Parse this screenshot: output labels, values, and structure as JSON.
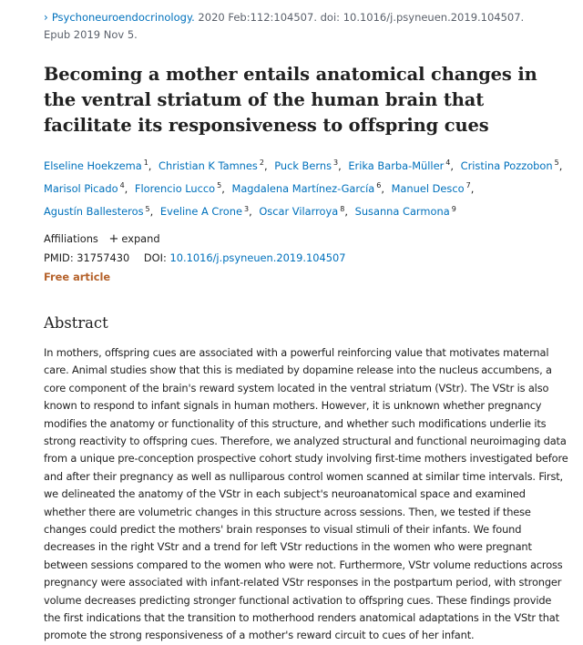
{
  "citation": {
    "chevron": "›",
    "journal": "Psychoneuroendocrinology.",
    "details": " 2020 Feb:112:104507. doi: 10.1016/j.psyneuen.2019.104507.",
    "epub": "Epub 2019 Nov 5."
  },
  "title": "Becoming a mother entails anatomical changes in the ventral striatum of the human brain that facilitate its responsiveness to offspring cues",
  "authors": [
    {
      "name": "Elseline Hoekzema",
      "aff": "1"
    },
    {
      "name": "Christian K Tamnes",
      "aff": "2"
    },
    {
      "name": "Puck Berns",
      "aff": "3"
    },
    {
      "name": "Erika Barba-Müller",
      "aff": "4"
    },
    {
      "name": "Cristina Pozzobon",
      "aff": "5"
    },
    {
      "name": "Marisol Picado",
      "aff": "4"
    },
    {
      "name": "Florencio Lucco",
      "aff": "5"
    },
    {
      "name": "Magdalena Martínez-García",
      "aff": "6"
    },
    {
      "name": "Manuel Desco",
      "aff": "7"
    },
    {
      "name": "Agustín Ballesteros",
      "aff": "5"
    },
    {
      "name": "Eveline A Crone",
      "aff": "3"
    },
    {
      "name": "Oscar Vilarroya",
      "aff": "8"
    },
    {
      "name": "Susanna Carmona",
      "aff": "9"
    }
  ],
  "affiliations": {
    "label": "Affiliations",
    "expand_icon": "+",
    "expand_label": "expand"
  },
  "ids": {
    "pmid_label": "PMID:",
    "pmid": "31757430",
    "doi_label": "DOI:",
    "doi": "10.1016/j.psyneuen.2019.104507"
  },
  "free_article": "Free article",
  "abstract": {
    "heading": "Abstract",
    "text": "In mothers, offspring cues are associated with a powerful reinforcing value that motivates maternal care. Animal studies show that this is mediated by dopamine release into the nucleus accumbens, a core component of the brain's reward system located in the ventral striatum (VStr). The VStr is also known to respond to infant signals in human mothers. However, it is unknown whether pregnancy modifies the anatomy or functionality of this structure, and whether such modifications underlie its strong reactivity to offspring cues. Therefore, we analyzed structural and functional neuroimaging data from a unique pre-conception prospective cohort study involving first-time mothers investigated before and after their pregnancy as well as nulliparous control women scanned at similar time intervals. First, we delineated the anatomy of the VStr in each subject's neuroanatomical space and examined whether there are volumetric changes in this structure across sessions. Then, we tested if these changes could predict the mothers' brain responses to visual stimuli of their infants. We found decreases in the right VStr and a trend for left VStr reductions in the women who were pregnant between sessions compared to the women who were not. Furthermore, VStr volume reductions across pregnancy were associated with infant-related VStr responses in the postpartum period, with stronger volume decreases predicting stronger functional activation to offspring cues. These findings provide the first indications that the transition to motherhood renders anatomical adaptations in the VStr that promote the strong responsiveness of a mother's reward circuit to cues of her infant."
  }
}
